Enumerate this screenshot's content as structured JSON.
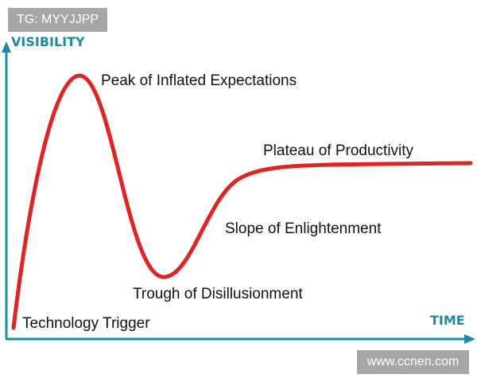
{
  "axes": {
    "y_label": "VISIBILITY",
    "x_label": "TIME",
    "color": "#1a8aa6"
  },
  "curve": {
    "color": "#e02424"
  },
  "phases": [
    {
      "label": "Technology Trigger"
    },
    {
      "label": "Peak of Inflated Expectations"
    },
    {
      "label": "Trough of Disillusionment"
    },
    {
      "label": "Slope of Enlightenment"
    },
    {
      "label": "Plateau of Productivity"
    }
  ],
  "watermarks": {
    "top": "TG: MYYJJPP",
    "bottom": "www.ccnen.com"
  }
}
